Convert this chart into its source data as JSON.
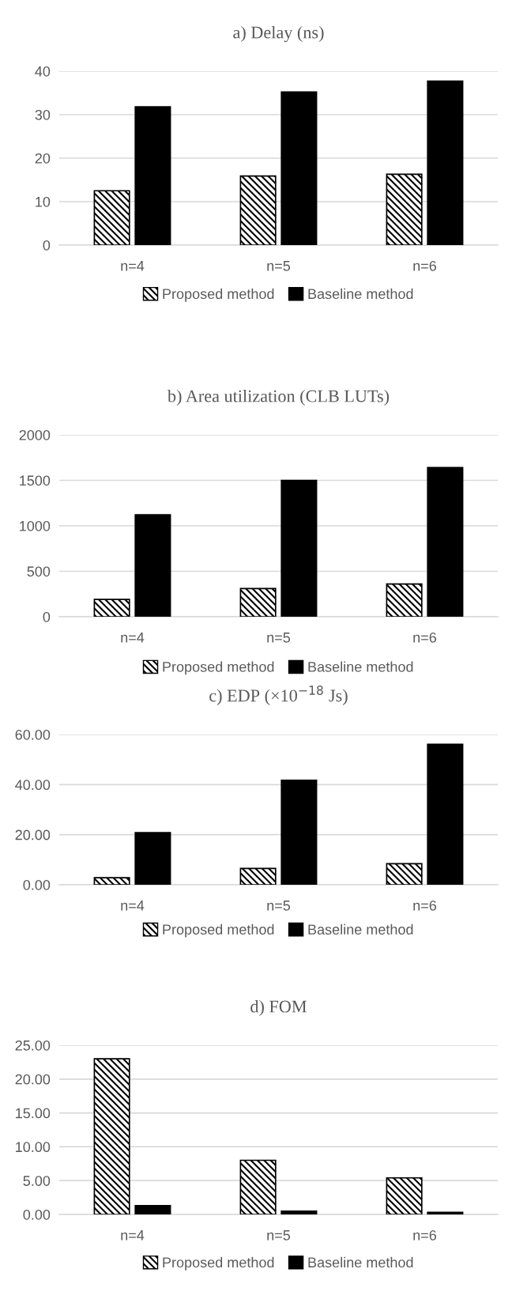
{
  "chart_data": [
    {
      "type": "bar",
      "title": "a) Delay (ns)",
      "categories": [
        "n=4",
        "n=5",
        "n=6"
      ],
      "series": [
        {
          "name": "Proposed method",
          "color": "#000000",
          "values": [
            12.5,
            15.9,
            16.3
          ]
        },
        {
          "name": "Baseline method",
          "color": "#000000",
          "values": [
            31.8,
            35.2,
            37.7
          ]
        }
      ],
      "ylim": [
        0,
        40
      ],
      "yticks": [
        0,
        10,
        20,
        30,
        40
      ],
      "grid": "y",
      "legend": "bottom"
    },
    {
      "type": "bar",
      "title": "b) Area utilization (CLB LUTs)",
      "categories": [
        "n=4",
        "n=5",
        "n=6"
      ],
      "series": [
        {
          "name": "Proposed method",
          "color": "#000000",
          "values": [
            190,
            310,
            360
          ]
        },
        {
          "name": "Baseline method",
          "color": "#000000",
          "values": [
            1120,
            1500,
            1640
          ]
        }
      ],
      "ylim": [
        0,
        2000
      ],
      "yticks": [
        0,
        500,
        1000,
        1500,
        2000
      ],
      "grid": "y",
      "legend": "bottom"
    },
    {
      "type": "bar",
      "title": "c) EDP (×10$^{−18}$ Js)",
      "categories": [
        "n=4",
        "n=5",
        "n=6"
      ],
      "series": [
        {
          "name": "Proposed method",
          "color": "#000000",
          "values": [
            2.8,
            6.5,
            8.4
          ]
        },
        {
          "name": "Baseline method",
          "color": "#000000",
          "values": [
            20.8,
            41.7,
            56.1
          ]
        }
      ],
      "ylim": [
        0,
        60
      ],
      "yticks": [
        {
          "value": 0,
          "label": "0.00"
        },
        {
          "value": 20,
          "label": "20.00"
        },
        {
          "value": 40,
          "label": "40.00"
        },
        {
          "value": 60,
          "label": "60.00"
        }
      ],
      "grid": "y",
      "legend": "bottom"
    },
    {
      "type": "bar",
      "title": "d) FOM",
      "categories": [
        "n=4",
        "n=5",
        "n=6"
      ],
      "series": [
        {
          "name": "Proposed method",
          "color": "#000000",
          "values": [
            23.0,
            8.0,
            5.4
          ]
        },
        {
          "name": "Baseline method",
          "color": "#000000",
          "values": [
            1.3,
            0.5,
            0.3
          ]
        }
      ],
      "ylim": [
        0,
        25
      ],
      "yticks": [
        {
          "value": 0,
          "label": "0.00"
        },
        {
          "value": 5,
          "label": "5.00"
        },
        {
          "value": 10,
          "label": "10.00"
        },
        {
          "value": 15,
          "label": "15.00"
        },
        {
          "value": 20,
          "label": "20.00"
        },
        {
          "value": 25,
          "label": "25.00"
        }
      ],
      "grid": "y",
      "legend": "bottom"
    }
  ]
}
